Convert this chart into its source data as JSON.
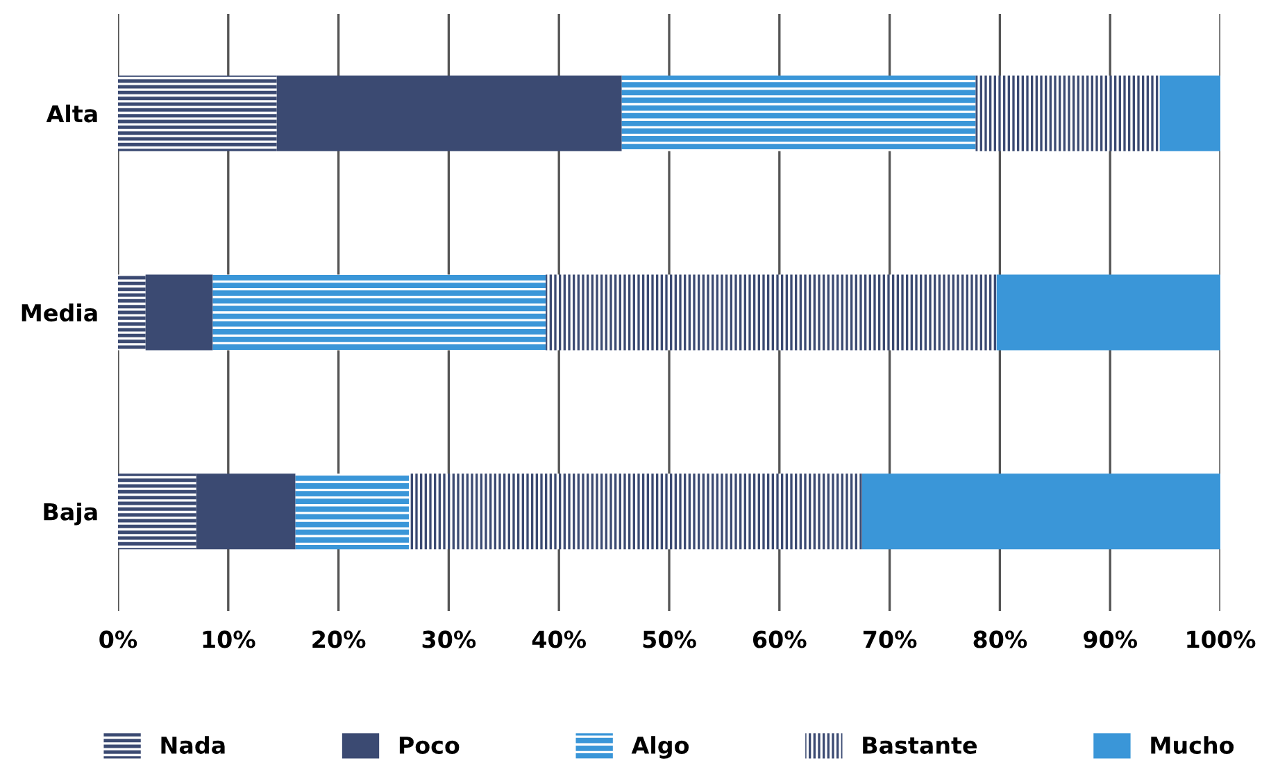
{
  "chart_data": {
    "type": "bar",
    "orientation": "horizontal",
    "stacked": true,
    "categories": [
      "Alta",
      "Media",
      "Baja"
    ],
    "series": [
      {
        "name": "Nada",
        "color": "#3b4a72",
        "values": [
          14.4,
          2.5,
          7.1
        ]
      },
      {
        "name": "Poco",
        "color": "#3b4a72",
        "values": [
          31.3,
          6.1,
          9.0
        ]
      },
      {
        "name": "Algo",
        "color": "#3a96d8",
        "values": [
          32.1,
          30.2,
          10.3
        ]
      },
      {
        "name": "Bastante",
        "color": "#3b4a72",
        "values": [
          16.7,
          40.9,
          41.1
        ]
      },
      {
        "name": "Mucho",
        "color": "#3a96d8",
        "values": [
          5.5,
          20.3,
          32.5
        ]
      }
    ],
    "xlim": [
      0,
      100
    ],
    "xticks": [
      {
        "value": 0,
        "label": "0%"
      },
      {
        "value": 10,
        "label": "10%"
      },
      {
        "value": 20,
        "label": "20%"
      },
      {
        "value": 30,
        "label": "30%"
      },
      {
        "value": 40,
        "label": "40%"
      },
      {
        "value": 50,
        "label": "50%"
      },
      {
        "value": 60,
        "label": "60%"
      },
      {
        "value": 70,
        "label": "70%"
      },
      {
        "value": 80,
        "label": "80%"
      },
      {
        "value": 90,
        "label": "90%"
      },
      {
        "value": 100,
        "label": "100%"
      }
    ],
    "grid": "x",
    "legend": "bottom"
  }
}
